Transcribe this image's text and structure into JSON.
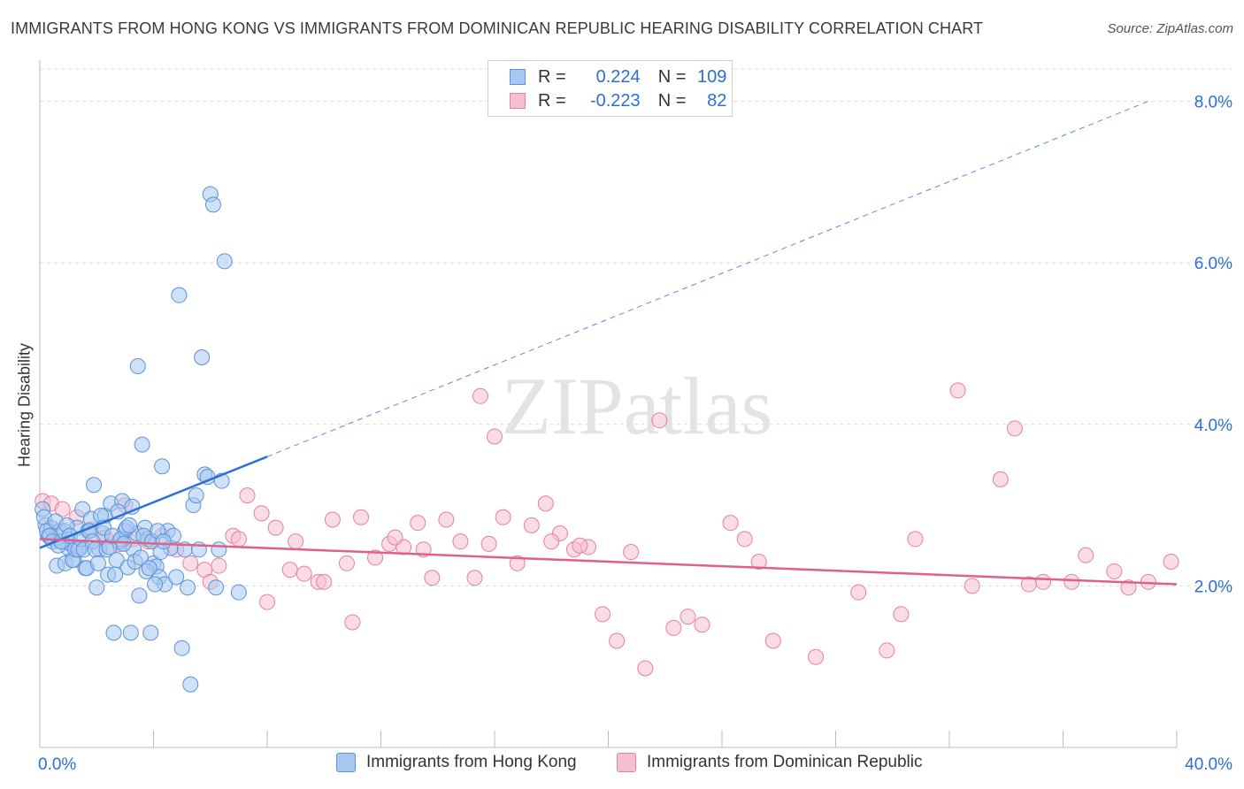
{
  "title": "IMMIGRANTS FROM HONG KONG VS IMMIGRANTS FROM DOMINICAN REPUBLIC HEARING DISABILITY CORRELATION CHART",
  "source": "Source: ZipAtlas.com",
  "watermark": "ZIPatlas",
  "legend": {
    "hk": {
      "r_label": "R =",
      "r_value": "0.224",
      "n_label": "N =",
      "n_value": "109"
    },
    "dr": {
      "r_label": "R =",
      "r_value": "-0.223",
      "n_label": "N =",
      "n_value": "82"
    }
  },
  "colors": {
    "hk_fill": "#a8c8f0",
    "hk_stroke": "#5a93d8",
    "hk_line": "#2c6fd6",
    "dr_fill": "#f6bfd0",
    "dr_stroke": "#e77fa0",
    "dr_line": "#e0608a",
    "tick_label": "#2c6fd6"
  },
  "chart_data": {
    "type": "scatter",
    "title": "IMMIGRANTS FROM HONG KONG VS IMMIGRANTS FROM DOMINICAN REPUBLIC HEARING DISABILITY CORRELATION CHART",
    "xlabel": "",
    "ylabel": "Hearing Disability",
    "xlim": [
      0,
      40
    ],
    "ylim": [
      0,
      8.4
    ],
    "x_tick_labels": [
      "0.0%",
      "40.0%"
    ],
    "y_ticks": [
      2,
      4,
      6,
      8
    ],
    "y_tick_labels": [
      "2.0%",
      "4.0%",
      "6.0%",
      "8.0%"
    ],
    "grid": true,
    "legend_position": "top-center",
    "series": [
      {
        "name": "Immigrants from Hong Kong",
        "trend": {
          "x0": 0,
          "y0": 2.47,
          "x1": 8.0,
          "y1": 3.6,
          "dashed_to_x": 39.0,
          "dashed_to_y": 8.0
        },
        "points": [
          [
            0.1,
            2.95
          ],
          [
            0.2,
            2.75
          ],
          [
            0.3,
            2.62
          ],
          [
            0.4,
            2.72
          ],
          [
            0.5,
            2.58
          ],
          [
            0.6,
            2.25
          ],
          [
            0.7,
            2.68
          ],
          [
            0.8,
            2.55
          ],
          [
            0.9,
            2.28
          ],
          [
            1.0,
            2.47
          ],
          [
            1.1,
            2.52
          ],
          [
            1.2,
            2.32
          ],
          [
            1.3,
            2.72
          ],
          [
            1.4,
            2.46
          ],
          [
            1.5,
            2.95
          ],
          [
            1.6,
            2.22
          ],
          [
            1.7,
            2.68
          ],
          [
            1.8,
            2.83
          ],
          [
            1.9,
            3.25
          ],
          [
            2.0,
            1.98
          ],
          [
            2.1,
            2.45
          ],
          [
            2.2,
            2.65
          ],
          [
            2.3,
            2.87
          ],
          [
            2.4,
            2.14
          ],
          [
            2.5,
            3.02
          ],
          [
            2.6,
            1.42
          ],
          [
            2.7,
            2.32
          ],
          [
            2.8,
            2.55
          ],
          [
            2.9,
            3.05
          ],
          [
            3.0,
            2.68
          ],
          [
            3.1,
            2.23
          ],
          [
            3.2,
            1.42
          ],
          [
            3.3,
            2.45
          ],
          [
            3.4,
            2.65
          ],
          [
            3.5,
            1.88
          ],
          [
            3.6,
            3.75
          ],
          [
            3.7,
            2.72
          ],
          [
            3.8,
            2.58
          ],
          [
            3.9,
            1.42
          ],
          [
            4.0,
            2.28
          ],
          [
            4.1,
            2.24
          ],
          [
            4.2,
            2.11
          ],
          [
            4.3,
            3.48
          ],
          [
            4.4,
            2.02
          ],
          [
            4.5,
            2.68
          ],
          [
            4.6,
            2.47
          ],
          [
            4.7,
            2.62
          ],
          [
            4.8,
            2.11
          ],
          [
            4.9,
            5.6
          ],
          [
            5.0,
            1.23
          ],
          [
            5.1,
            2.45
          ],
          [
            5.2,
            1.98
          ],
          [
            5.3,
            0.78
          ],
          [
            5.4,
            3.0
          ],
          [
            5.5,
            3.12
          ],
          [
            5.6,
            2.45
          ],
          [
            5.7,
            4.83
          ],
          [
            5.8,
            3.38
          ],
          [
            5.9,
            3.35
          ],
          [
            6.0,
            6.85
          ],
          [
            6.1,
            6.72
          ],
          [
            6.2,
            1.98
          ],
          [
            6.3,
            2.45
          ],
          [
            6.4,
            3.3
          ],
          [
            6.5,
            6.02
          ],
          [
            0.15,
            2.85
          ],
          [
            0.25,
            2.68
          ],
          [
            0.35,
            2.62
          ],
          [
            0.45,
            2.55
          ],
          [
            0.55,
            2.8
          ],
          [
            0.65,
            2.5
          ],
          [
            0.75,
            2.55
          ],
          [
            0.85,
            2.68
          ],
          [
            0.95,
            2.75
          ],
          [
            1.05,
            2.62
          ],
          [
            1.15,
            2.32
          ],
          [
            1.25,
            2.45
          ],
          [
            1.35,
            2.45
          ],
          [
            1.45,
            2.58
          ],
          [
            1.55,
            2.45
          ],
          [
            1.65,
            2.22
          ],
          [
            1.75,
            2.68
          ],
          [
            1.85,
            2.55
          ],
          [
            1.95,
            2.45
          ],
          [
            2.05,
            2.28
          ],
          [
            2.15,
            2.87
          ],
          [
            2.25,
            2.72
          ],
          [
            2.35,
            2.45
          ],
          [
            2.45,
            2.48
          ],
          [
            2.55,
            2.62
          ],
          [
            2.65,
            2.14
          ],
          [
            2.75,
            2.92
          ],
          [
            2.85,
            2.58
          ],
          [
            2.95,
            2.52
          ],
          [
            3.05,
            2.72
          ],
          [
            3.15,
            2.75
          ],
          [
            3.25,
            2.98
          ],
          [
            3.35,
            2.3
          ],
          [
            3.45,
            4.72
          ],
          [
            3.55,
            2.35
          ],
          [
            3.65,
            2.62
          ],
          [
            3.75,
            2.18
          ],
          [
            3.85,
            2.22
          ],
          [
            3.95,
            2.55
          ],
          [
            4.05,
            2.02
          ],
          [
            4.15,
            2.68
          ],
          [
            4.25,
            2.42
          ],
          [
            4.35,
            2.55
          ],
          [
            7.0,
            1.92
          ]
        ]
      },
      {
        "name": "Immigrants from Dominican Republic",
        "trend": {
          "x0": 0,
          "y0": 2.58,
          "x1": 40,
          "y1": 2.02
        },
        "points": [
          [
            0.1,
            3.05
          ],
          [
            0.4,
            3.02
          ],
          [
            0.8,
            2.95
          ],
          [
            1.3,
            2.85
          ],
          [
            1.8,
            2.7
          ],
          [
            2.3,
            2.6
          ],
          [
            2.8,
            2.52
          ],
          [
            3.3,
            2.58
          ],
          [
            3.8,
            2.55
          ],
          [
            4.3,
            2.62
          ],
          [
            4.8,
            2.45
          ],
          [
            5.3,
            2.28
          ],
          [
            5.8,
            2.2
          ],
          [
            6.3,
            2.25
          ],
          [
            6.8,
            2.62
          ],
          [
            7.3,
            3.12
          ],
          [
            7.8,
            2.9
          ],
          [
            8.3,
            2.72
          ],
          [
            8.8,
            2.2
          ],
          [
            9.3,
            2.15
          ],
          [
            9.8,
            2.05
          ],
          [
            10.3,
            2.82
          ],
          [
            10.8,
            2.28
          ],
          [
            11.3,
            2.85
          ],
          [
            11.8,
            2.35
          ],
          [
            12.3,
            2.52
          ],
          [
            12.8,
            2.48
          ],
          [
            13.3,
            2.78
          ],
          [
            13.8,
            2.1
          ],
          [
            14.3,
            2.82
          ],
          [
            14.8,
            2.55
          ],
          [
            15.3,
            2.1
          ],
          [
            15.8,
            2.52
          ],
          [
            16.3,
            2.85
          ],
          [
            16.8,
            2.28
          ],
          [
            17.3,
            2.75
          ],
          [
            17.8,
            3.02
          ],
          [
            18.3,
            2.65
          ],
          [
            18.8,
            2.45
          ],
          [
            19.3,
            2.48
          ],
          [
            19.8,
            1.65
          ],
          [
            20.3,
            1.32
          ],
          [
            20.8,
            2.42
          ],
          [
            21.3,
            0.98
          ],
          [
            21.8,
            4.05
          ],
          [
            22.3,
            1.48
          ],
          [
            22.8,
            1.62
          ],
          [
            23.3,
            1.52
          ],
          [
            24.3,
            2.78
          ],
          [
            25.3,
            2.3
          ],
          [
            25.8,
            1.32
          ],
          [
            27.3,
            1.12
          ],
          [
            28.8,
            1.92
          ],
          [
            29.8,
            1.2
          ],
          [
            30.3,
            1.65
          ],
          [
            30.8,
            2.58
          ],
          [
            32.3,
            4.42
          ],
          [
            33.8,
            3.32
          ],
          [
            34.3,
            3.95
          ],
          [
            35.3,
            2.05
          ],
          [
            36.3,
            2.05
          ],
          [
            38.3,
            1.98
          ],
          [
            39.0,
            2.05
          ],
          [
            3.0,
            3.0
          ],
          [
            9.0,
            2.55
          ],
          [
            11.0,
            1.55
          ],
          [
            12.5,
            2.6
          ],
          [
            13.5,
            2.45
          ],
          [
            15.5,
            4.35
          ],
          [
            16.0,
            3.85
          ],
          [
            18.0,
            2.55
          ],
          [
            19.0,
            2.5
          ],
          [
            24.8,
            2.58
          ],
          [
            32.8,
            2.0
          ],
          [
            34.8,
            2.02
          ],
          [
            36.8,
            2.38
          ],
          [
            37.8,
            2.18
          ],
          [
            39.8,
            2.3
          ],
          [
            6.0,
            2.05
          ],
          [
            7.0,
            2.58
          ],
          [
            8.0,
            1.8
          ],
          [
            10.0,
            2.05
          ]
        ]
      }
    ]
  },
  "bottom_legend": {
    "hk": "Immigrants from Hong Kong",
    "dr": "Immigrants from Dominican Republic"
  }
}
